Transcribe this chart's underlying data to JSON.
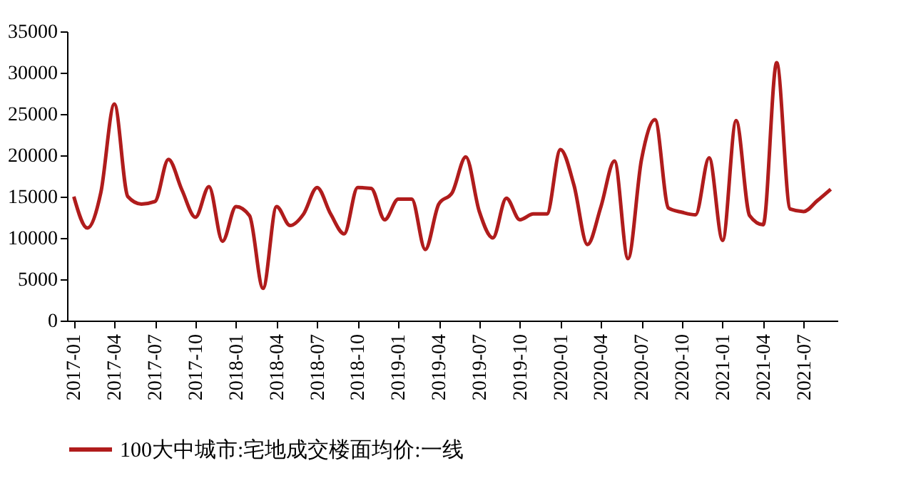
{
  "chart_data": {
    "type": "line",
    "categories": [
      "2017-01",
      null,
      null,
      "2017-04",
      null,
      null,
      "2017-07",
      null,
      null,
      "2017-10",
      null,
      null,
      "2018-01",
      null,
      null,
      "2018-04",
      null,
      null,
      "2018-07",
      null,
      null,
      "2018-10",
      null,
      null,
      "2019-01",
      null,
      null,
      "2019-04",
      null,
      null,
      "2019-07",
      null,
      null,
      "2019-10",
      null,
      null,
      "2020-01",
      null,
      null,
      "2020-04",
      null,
      null,
      "2020-07",
      null,
      null,
      "2020-10",
      null,
      null,
      "2021-01",
      null,
      null,
      "2021-04",
      null,
      null,
      "2021-07",
      null,
      null
    ],
    "series": [
      {
        "name": "100大中城市:宅地成交楼面均价:一线",
        "color": "#b01c1c",
        "values": [
          15000,
          11200,
          15500,
          26200,
          15000,
          14100,
          14400,
          19500,
          15800,
          12500,
          16200,
          9600,
          13800,
          12700,
          3900,
          13800,
          11500,
          12900,
          16100,
          12900,
          10500,
          16100,
          16000,
          12200,
          14700,
          14700,
          8600,
          14100,
          15500,
          19800,
          13200,
          10000,
          14800,
          12200,
          12900,
          12900,
          20700,
          16400,
          9200,
          13800,
          19300,
          7500,
          19500,
          24300,
          13600,
          13100,
          12800,
          19700,
          9700,
          24200,
          12700,
          11600,
          31200,
          13500,
          13200,
          14500,
          15900
        ]
      }
    ],
    "ylim": [
      0,
      35000
    ],
    "yticks": [
      0,
      5000,
      10000,
      15000,
      20000,
      25000,
      30000,
      35000
    ],
    "grid": false,
    "legend": "bottom",
    "marker": "none",
    "line_style": "solid"
  }
}
